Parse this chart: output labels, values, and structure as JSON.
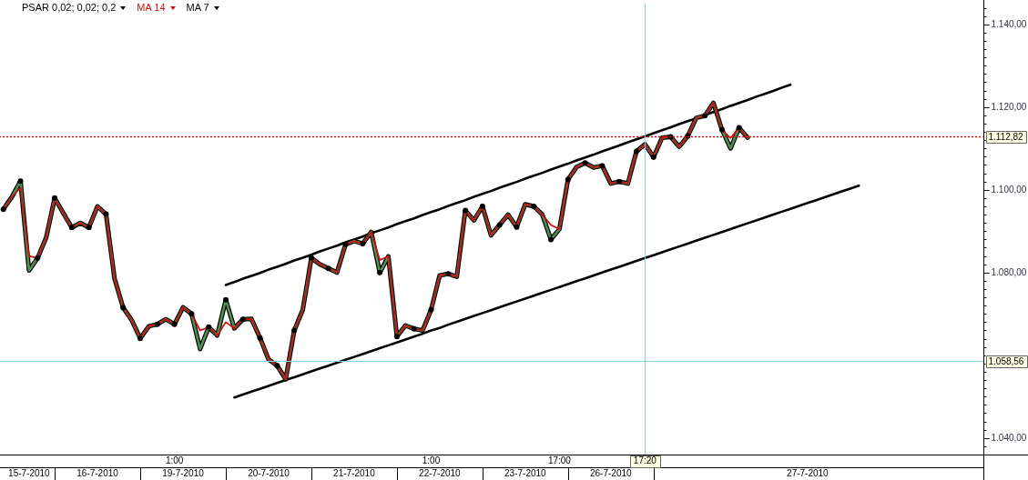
{
  "chart_data": {
    "type": "line",
    "legend": "top left",
    "categories": [
      null,
      null,
      null,
      "15-7-2010",
      null,
      null,
      null,
      null,
      null,
      null,
      null,
      "16-7-2010",
      null,
      null,
      null,
      null,
      null,
      null,
      null,
      null,
      "1:00",
      "19-7-2010",
      null,
      null,
      null,
      null,
      null,
      null,
      null,
      null,
      null,
      "20-7-2010",
      null,
      null,
      null,
      null,
      null,
      null,
      null,
      null,
      null,
      "21-7-2010",
      null,
      null,
      null,
      null,
      null,
      null,
      null,
      null,
      "1:00",
      "22-7-2010",
      null,
      null,
      null,
      null,
      null,
      null,
      null,
      null,
      null,
      "23-7-2010",
      null,
      null,
      null,
      "17:00",
      null,
      null,
      null,
      null,
      null,
      "26-7-2010",
      null,
      null,
      null,
      "17:20",
      null,
      null,
      null,
      null,
      null,
      null,
      null,
      null,
      null,
      null,
      null,
      null,
      null,
      null,
      null,
      null,
      null,
      null,
      "27-7-2010",
      null,
      null,
      null,
      null,
      null,
      null,
      null,
      null,
      null,
      null,
      null,
      null,
      null,
      null,
      null,
      null,
      null,
      null,
      null,
      null
    ],
    "series": [
      {
        "name": "PSAR 0,02; 0,02; 0,2",
        "type": "scatter",
        "marker": "circle",
        "color": "#000000",
        "values": [
          1095.3,
          null,
          1102.1,
          null,
          1083.5,
          null,
          1098.0,
          null,
          1090.9,
          null,
          1090.9,
          null,
          1094.1,
          null,
          1071.5,
          null,
          1064.1,
          null,
          1067.5,
          null,
          1067.5,
          null,
          1070.0,
          null,
          1066.8,
          null,
          1073.4,
          null,
          1068.7,
          null,
          1064.2,
          null,
          1057.5,
          null,
          1066.0,
          null,
          1083.5,
          null,
          1081.0,
          null,
          1086.8,
          null,
          1087.0,
          null,
          1080.0,
          null,
          1064.5,
          null,
          1066.4,
          null,
          1071.0,
          null,
          1079.7,
          null,
          1095.0,
          null,
          1096.0,
          null,
          1091.5,
          null,
          1091.0,
          null,
          1096.0,
          null,
          1088.0,
          null,
          1102.5,
          null,
          1106.5,
          null,
          1105.8,
          null,
          1102.0,
          null,
          1109.3,
          null,
          1107.9,
          null,
          1112.8,
          null,
          1113.0,
          null,
          1117.9,
          null,
          1114.5,
          null,
          1115.0,
          null,
          null,
          null,
          null,
          null,
          null,
          null,
          null,
          null,
          null,
          null,
          null,
          null,
          null,
          null,
          null,
          null,
          null,
          null,
          null,
          null,
          null,
          null,
          null,
          null,
          null,
          null,
          null
        ]
      },
      {
        "name": "MA 14",
        "color": "#cc1111",
        "values": [
          1095.3,
          1098.3,
          1100.5,
          1084.0,
          1083.5,
          1088.4,
          1098.0,
          1094.4,
          1090.9,
          1092.0,
          1090.9,
          1096.0,
          1094.1,
          1078.5,
          1071.5,
          1068.5,
          1064.1,
          1067.0,
          1067.5,
          1068.7,
          1067.5,
          1071.6,
          1070.0,
          1066.0,
          1066.8,
          1064.8,
          1068.0,
          1066.5,
          1068.7,
          1068.8,
          1064.2,
          1059.0,
          1057.5,
          1054.2,
          1066.0,
          1071.0,
          1083.5,
          1082.0,
          1081.0,
          1080.0,
          1086.8,
          1087.6,
          1087.0,
          1089.8,
          1083.0,
          1083.9,
          1064.5,
          1067.2,
          1066.4,
          1066.0,
          1071.0,
          1079.3,
          1079.7,
          1079.0,
          1095.0,
          1092.6,
          1096.0,
          1089.0,
          1091.5,
          1094.0,
          1091.0,
          1096.5,
          1096.0,
          1094.0,
          1091.5,
          1090.5,
          1102.5,
          1105.5,
          1106.5,
          1105.4,
          1105.8,
          1101.5,
          1102.0,
          1101.5,
          1109.3,
          1111.0,
          1107.9,
          1112.6,
          1112.8,
          1110.4,
          1113.0,
          1117.4,
          1117.9,
          1121.0,
          1114.5,
          1112.5,
          1115.0,
          1112.6,
          null,
          null,
          null,
          null,
          null,
          null,
          null,
          null,
          null,
          null,
          null,
          null,
          null,
          null,
          null,
          null,
          null,
          null,
          null,
          null,
          null,
          null,
          null,
          null,
          null,
          null,
          null
        ]
      },
      {
        "color": "#4f8f4f",
        "values": [
          1095.3,
          1098.3,
          1102.1,
          1080.5,
          1083.5,
          1088.4,
          1098.0,
          1094.4,
          1090.9,
          1092.0,
          1090.9,
          1096.0,
          1094.1,
          1078.5,
          1071.5,
          1068.5,
          1064.1,
          1067.0,
          1067.5,
          1068.7,
          1067.5,
          1071.6,
          1070.0,
          1061.5,
          1066.8,
          1064.8,
          1073.4,
          1066.5,
          1068.7,
          1068.8,
          1064.2,
          1059.0,
          1057.5,
          1054.2,
          1066.0,
          1071.0,
          1083.5,
          1082.0,
          1081.0,
          1080.0,
          1086.8,
          1087.6,
          1087.0,
          1089.8,
          1080.0,
          1083.9,
          1064.5,
          1067.2,
          1066.4,
          1066.0,
          1071.0,
          1079.3,
          1079.7,
          1079.0,
          1095.0,
          1092.6,
          1096.0,
          1089.0,
          1091.5,
          1094.0,
          1091.0,
          1096.5,
          1096.0,
          1094.0,
          1088.0,
          1090.5,
          1102.5,
          1105.5,
          1106.5,
          1105.4,
          1105.8,
          1101.5,
          1102.0,
          1101.5,
          1109.3,
          1111.0,
          1107.9,
          1112.6,
          1112.8,
          1110.4,
          1113.0,
          1117.4,
          1117.9,
          1121.0,
          1114.5,
          1110.0,
          1115.0,
          1112.6,
          null,
          null,
          null,
          null,
          null,
          null,
          null,
          null,
          null,
          null,
          null,
          null,
          null,
          null,
          null,
          null,
          null,
          null,
          null,
          null,
          null,
          null,
          null,
          null,
          null,
          null,
          null
        ]
      },
      {
        "name": "MA 7",
        "color": "#000000",
        "values": [
          1095.3,
          1098.3,
          1102.1,
          1080.5,
          1083.5,
          1088.4,
          1098.0,
          1094.4,
          1090.9,
          1092.0,
          1090.9,
          1096.0,
          1094.1,
          1078.5,
          1071.5,
          1068.5,
          1064.1,
          1067.0,
          1067.5,
          1068.7,
          1067.5,
          1071.6,
          1070.0,
          1061.5,
          1066.8,
          1064.8,
          1073.4,
          1066.5,
          1068.7,
          1068.8,
          1064.2,
          1059.0,
          1057.5,
          1054.2,
          1066.0,
          1071.0,
          1083.5,
          1082.0,
          1081.0,
          1080.0,
          1086.8,
          1087.6,
          1087.0,
          1089.8,
          1080.0,
          1083.9,
          1064.5,
          1067.2,
          1066.4,
          1066.0,
          1071.0,
          1079.3,
          1079.7,
          1079.0,
          1095.0,
          1092.6,
          1096.0,
          1089.0,
          1091.5,
          1094.0,
          1091.0,
          1096.5,
          1096.0,
          1094.0,
          1088.0,
          1090.5,
          1102.5,
          1105.5,
          1106.5,
          1105.4,
          1105.8,
          1101.5,
          1102.0,
          1101.5,
          1109.3,
          1111.0,
          1107.9,
          1112.6,
          1112.8,
          1110.4,
          1113.0,
          1117.4,
          1117.9,
          1121.0,
          1114.5,
          1110.0,
          1115.0,
          1112.6,
          null,
          null,
          null,
          null,
          null,
          null,
          null,
          null,
          null,
          null,
          null,
          null,
          null,
          null,
          null,
          null,
          null,
          null,
          null,
          null,
          null,
          null,
          null,
          null,
          null,
          null,
          null
        ]
      },
      {
        "color": "#000000",
        "values": [
          null,
          null,
          null,
          null,
          null,
          null,
          null,
          null,
          null,
          null,
          null,
          null,
          null,
          null,
          null,
          null,
          null,
          null,
          null,
          null,
          null,
          null,
          null,
          null,
          null,
          null,
          1077.0,
          1077.7,
          1078.5,
          1079.2,
          1079.9,
          1080.7,
          1081.4,
          1082.1,
          1082.9,
          1083.6,
          1084.3,
          1085.1,
          1085.8,
          1086.5,
          1087.3,
          1088.0,
          1088.7,
          1089.5,
          1090.2,
          1090.9,
          1091.7,
          1092.4,
          1093.1,
          1093.9,
          1094.6,
          1095.3,
          1096.1,
          1096.8,
          1097.5,
          1098.3,
          1099.0,
          1099.7,
          1100.5,
          1101.2,
          1101.9,
          1102.7,
          1103.4,
          1104.1,
          1104.9,
          1105.6,
          1106.3,
          1107.1,
          1107.8,
          1108.5,
          1109.3,
          1110.0,
          1110.7,
          1111.5,
          1112.2,
          1112.9,
          1113.7,
          1114.4,
          1115.1,
          1115.9,
          1116.6,
          1117.3,
          1118.1,
          1118.8,
          1119.5,
          1120.3,
          1121.0,
          1121.7,
          1122.5,
          1123.2,
          1123.9,
          1124.7,
          1125.4,
          null,
          null,
          null,
          null,
          null,
          null,
          null,
          null,
          null,
          null,
          null,
          null,
          null,
          null,
          null,
          null,
          null,
          null,
          null,
          null,
          null,
          null
        ]
      },
      {
        "color": "#000000",
        "values": [
          null,
          null,
          null,
          null,
          null,
          null,
          null,
          null,
          null,
          null,
          null,
          null,
          null,
          null,
          null,
          null,
          null,
          null,
          null,
          null,
          null,
          null,
          null,
          null,
          null,
          null,
          null,
          1049.8,
          1050.5,
          1051.2,
          1051.9,
          1052.6,
          1053.3,
          1054.0,
          1054.7,
          1055.4,
          1056.1,
          1056.8,
          1057.5,
          1058.2,
          1058.9,
          1059.6,
          1060.3,
          1061.0,
          1061.7,
          1062.4,
          1063.1,
          1063.8,
          1064.5,
          1065.2,
          1066.0,
          1066.6,
          1067.4,
          1068.1,
          1068.8,
          1069.5,
          1070.2,
          1070.9,
          1071.6,
          1072.3,
          1073.0,
          1073.7,
          1074.4,
          1075.1,
          1075.8,
          1076.5,
          1077.2,
          1077.9,
          1078.6,
          1079.3,
          1080.0,
          1080.7,
          1081.4,
          1082.1,
          1082.8,
          1083.5,
          1084.2,
          1084.9,
          1085.6,
          1086.3,
          1087.0,
          1087.7,
          1088.4,
          1089.1,
          1089.8,
          1090.5,
          1091.2,
          1091.9,
          1092.6,
          1093.3,
          1094.0,
          1094.7,
          1095.4,
          1096.1,
          1096.8,
          1097.5,
          1098.2,
          1098.9,
          1099.6,
          1100.3,
          1101.0,
          null,
          null,
          null,
          null,
          null,
          null,
          null,
          null,
          null,
          null,
          null,
          null,
          null,
          null
        ]
      }
    ],
    "ylim": [
      1036,
      1145
    ],
    "yticks": [
      {
        "value": 1038,
        "label": null
      },
      {
        "value": 1040,
        "label": "1.040,00"
      },
      {
        "value": 1042,
        "label": null
      },
      {
        "value": 1044,
        "label": null
      },
      {
        "value": 1046,
        "label": null
      },
      {
        "value": 1048,
        "label": null
      },
      {
        "value": 1050,
        "label": null
      },
      {
        "value": 1052,
        "label": null
      },
      {
        "value": 1054,
        "label": null
      },
      {
        "value": 1056,
        "label": null
      },
      {
        "value": 1058,
        "label": null
      },
      {
        "value": 1060,
        "label": null
      },
      {
        "value": 1062,
        "label": null
      },
      {
        "value": 1064,
        "label": null
      },
      {
        "value": 1066,
        "label": null
      },
      {
        "value": 1068,
        "label": null
      },
      {
        "value": 1070,
        "label": null
      },
      {
        "value": 1072,
        "label": null
      },
      {
        "value": 1074,
        "label": null
      },
      {
        "value": 1076,
        "label": null
      },
      {
        "value": 1078,
        "label": null
      },
      {
        "value": 1080,
        "label": "1.080,00"
      },
      {
        "value": 1082,
        "label": null
      },
      {
        "value": 1084,
        "label": null
      },
      {
        "value": 1086,
        "label": null
      },
      {
        "value": 1088,
        "label": null
      },
      {
        "value": 1090,
        "label": null
      },
      {
        "value": 1092,
        "label": null
      },
      {
        "value": 1094,
        "label": null
      },
      {
        "value": 1096,
        "label": null
      },
      {
        "value": 1098,
        "label": null
      },
      {
        "value": 1100,
        "label": "1.100,00"
      },
      {
        "value": 1102,
        "label": null
      },
      {
        "value": 1104,
        "label": null
      },
      {
        "value": 1106,
        "label": null
      },
      {
        "value": 1108,
        "label": null
      },
      {
        "value": 1110,
        "label": null
      },
      {
        "value": 1112,
        "label": null
      },
      {
        "value": 1114,
        "label": null
      },
      {
        "value": 1116,
        "label": null
      },
      {
        "value": 1118,
        "label": null
      },
      {
        "value": 1120,
        "label": "1.120,00"
      },
      {
        "value": 1122,
        "label": null
      },
      {
        "value": 1124,
        "label": null
      },
      {
        "value": 1126,
        "label": null
      },
      {
        "value": 1128,
        "label": null
      },
      {
        "value": 1130,
        "label": null
      },
      {
        "value": 1132,
        "label": null
      },
      {
        "value": 1134,
        "label": null
      },
      {
        "value": 1136,
        "label": null
      },
      {
        "value": 1138,
        "label": null
      },
      {
        "value": 1140,
        "label": "1.140,00"
      },
      {
        "value": 1142,
        "label": null
      },
      {
        "value": 1144,
        "label": null
      }
    ],
    "ref_lines": [
      {
        "axis": "y",
        "value": 1112.82,
        "label": "1.112,82",
        "color": "#ff0000",
        "line_style": "dotted"
      },
      {
        "axis": "y",
        "value": 1058.56,
        "label": "1.058,56",
        "color": "#87ceeb"
      },
      {
        "axis": "x",
        "value": "17:20",
        "color": "#87ceeb"
      }
    ]
  }
}
